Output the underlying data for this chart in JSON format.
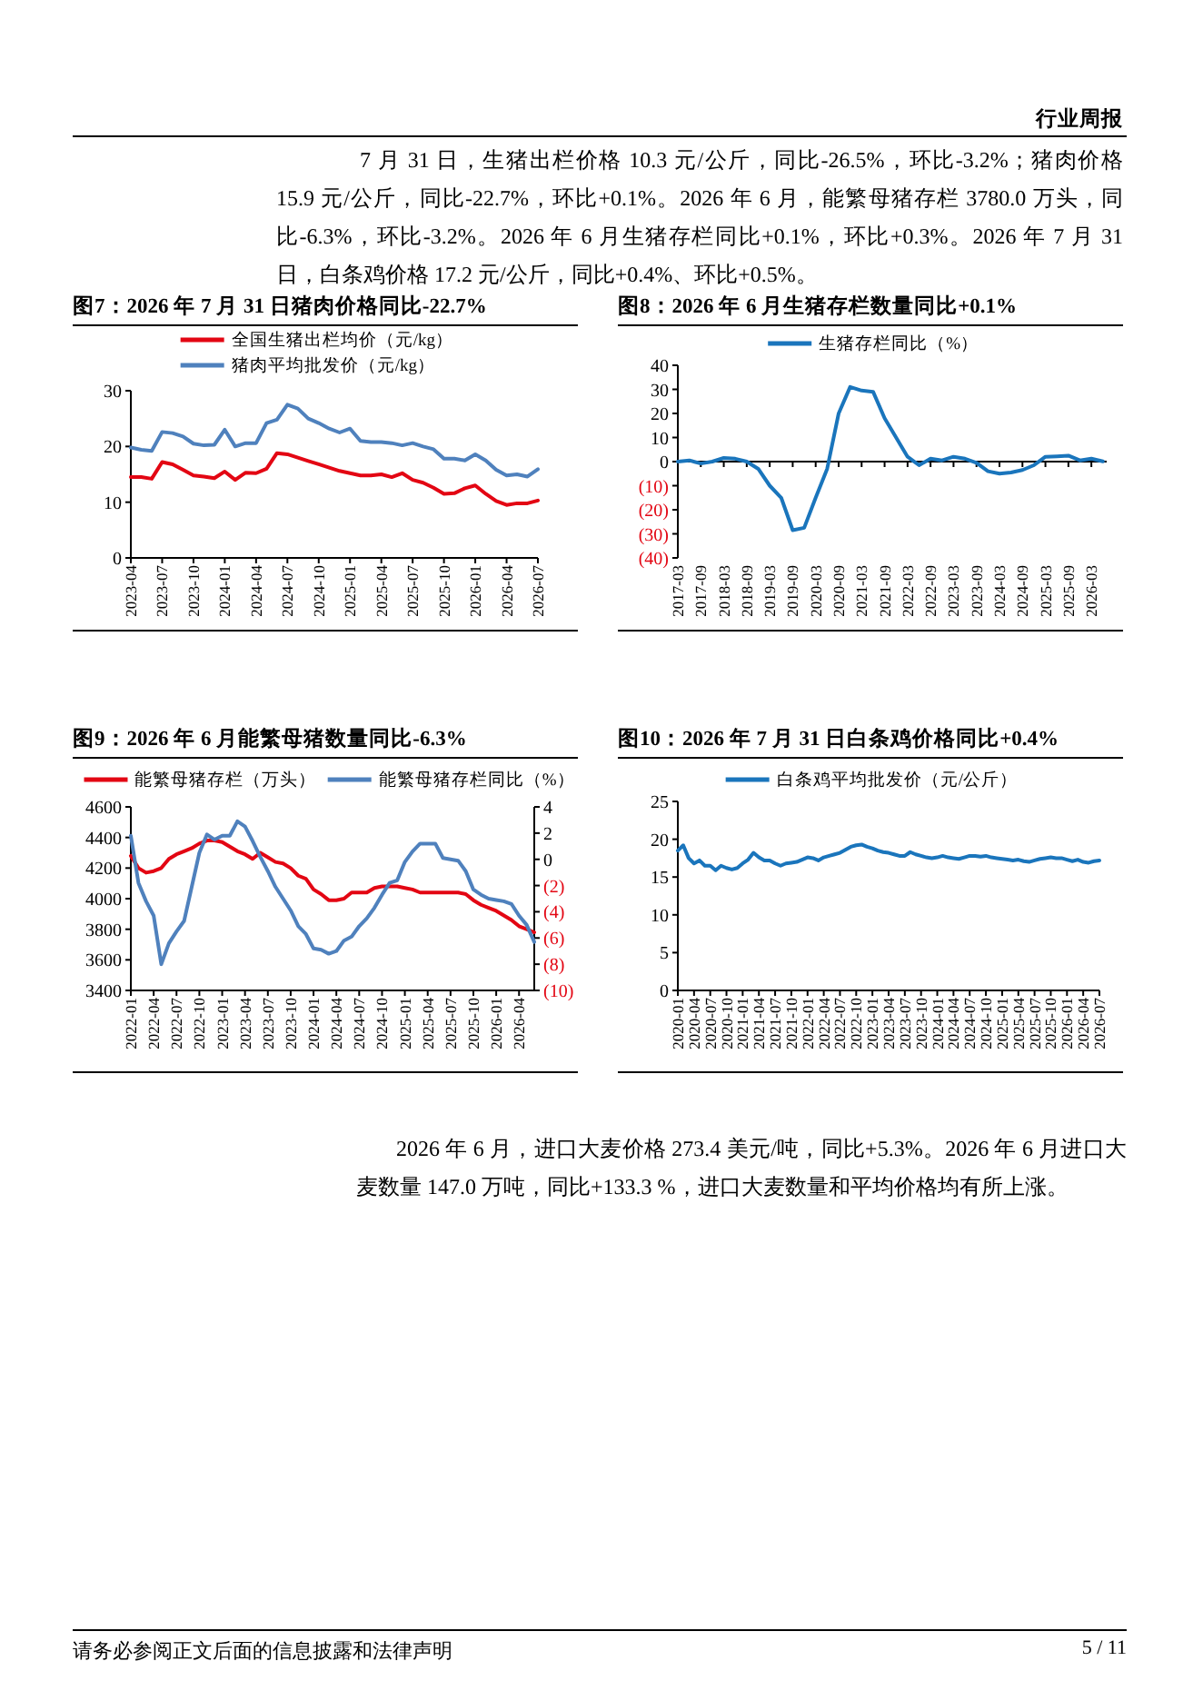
{
  "chart_data": [
    {
      "type": "other",
      "annotations": [
        "行业周报",
        "7 月 31 日，生猪出栏价格 10.3 元/公斤，同比-26.5%，环比-3.2%；猪肉价格 15.9 元/公斤，同比-22.7%，环比+0.1%。2026 年 6 月，能繁母猪存栏 3780.0 万头，同比-6.3%，环比-3.2%。2026 年 6 月生猪存栏同比+0.1%，环比+0.3%。2026 年 7 月 31 日，白条鸡价格 17.2 元/公斤，同比+0.4%、环比+0.5%。"
      ]
    },
    {
      "type": "line",
      "title": "图7：2026 年 7 月 31 日猪肉价格同比-22.7%",
      "legend": "top",
      "x": [
        "2023-04",
        "2023-05",
        "2023-06",
        "2023-07",
        "2023-08",
        "2023-09",
        "2023-10",
        "2023-11",
        "2023-12",
        "2024-01",
        "2024-02",
        "2024-03",
        "2024-04",
        "2024-05",
        "2024-06",
        "2024-07",
        "2024-08",
        "2024-09",
        "2024-10",
        "2024-11",
        "2024-12",
        "2025-01",
        "2025-02",
        "2025-03",
        "2025-04",
        "2025-05",
        "2025-06",
        "2025-07",
        "2025-08",
        "2025-09",
        "2025-10",
        "2025-11",
        "2025-12",
        "2026-01",
        "2026-02",
        "2026-03",
        "2026-04",
        "2026-05",
        "2026-06",
        "2026-07"
      ],
      "series": [
        {
          "name": "全国生猪出栏均价（元/kg）",
          "color": "#e30613",
          "values": [
            14.5,
            14.5,
            14.2,
            17.2,
            16.8,
            15.8,
            14.8,
            14.6,
            14.3,
            15.5,
            14.0,
            15.3,
            15.2,
            16.0,
            18.8,
            18.6,
            18.0,
            17.4,
            16.8,
            16.2,
            15.6,
            15.2,
            14.8,
            14.8,
            15.0,
            14.5,
            15.2,
            14.0,
            13.5,
            12.6,
            11.5,
            11.6,
            12.5,
            13.0,
            11.5,
            10.2,
            9.5,
            9.8,
            9.8,
            10.3
          ]
        },
        {
          "name": "猪肉平均批发价（元/kg）",
          "color": "#4f81bd",
          "values": [
            19.8,
            19.4,
            19.2,
            22.6,
            22.4,
            21.8,
            20.5,
            20.2,
            20.3,
            23.0,
            20.0,
            20.6,
            20.6,
            24.2,
            24.8,
            27.5,
            26.8,
            25.0,
            24.2,
            23.2,
            22.5,
            23.2,
            21.0,
            20.8,
            20.8,
            20.6,
            20.2,
            20.6,
            20.0,
            19.5,
            17.8,
            17.8,
            17.5,
            18.6,
            17.5,
            15.8,
            14.8,
            15.0,
            14.6,
            15.9
          ]
        }
      ],
      "xlim": [
        "2023-04",
        "2026-07"
      ],
      "xticks": [
        "2023-04",
        "2023-07",
        "2023-10",
        "2024-01",
        "2024-04",
        "2024-07",
        "2024-10",
        "2025-01",
        "2025-04",
        "2025-07",
        "2025-10",
        "2026-01",
        "2026-04",
        "2026-07"
      ],
      "ylim": [
        0,
        30
      ],
      "yticks": [
        0,
        10,
        20,
        30
      ]
    },
    {
      "type": "line",
      "title": "图8：2026 年 6 月生猪存栏数量同比+0.1%",
      "legend": "top",
      "x": [
        "2017-03",
        "2017-06",
        "2017-09",
        "2017-12",
        "2018-03",
        "2018-06",
        "2018-09",
        "2018-12",
        "2019-03",
        "2019-06",
        "2019-09",
        "2019-12",
        "2020-03",
        "2020-06",
        "2020-09",
        "2020-12",
        "2021-03",
        "2021-06",
        "2021-09",
        "2021-12",
        "2022-03",
        "2022-06",
        "2022-09",
        "2022-12",
        "2023-03",
        "2023-06",
        "2023-09",
        "2023-12",
        "2024-03",
        "2024-06",
        "2024-09",
        "2024-12",
        "2025-03",
        "2025-06",
        "2025-09",
        "2025-12",
        "2026-03",
        "2026-06"
      ],
      "series": [
        {
          "name": "生猪存栏同比（%）",
          "color": "#1a75bc",
          "values": [
            0,
            0.5,
            -0.8,
            0,
            1.5,
            1.2,
            0,
            -3,
            -10,
            -15,
            -28.5,
            -27.5,
            -15,
            -3,
            20,
            31,
            29.5,
            29,
            18,
            10,
            2,
            -1.5,
            1.2,
            0.5,
            2,
            1.2,
            -0.5,
            -4,
            -5,
            -4.5,
            -3.5,
            -1.5,
            2,
            2.2,
            2.5,
            0.5,
            1.2,
            0.1
          ]
        }
      ],
      "xlim": [
        "2017-03",
        "2026-07"
      ],
      "xticks": [
        "2017-03",
        "2017-09",
        "2018-03",
        "2018-09",
        "2019-03",
        "2019-09",
        "2020-03",
        "2020-09",
        "2021-03",
        "2021-09",
        "2022-03",
        "2022-09",
        "2023-03",
        "2023-09",
        "2024-03",
        "2024-09",
        "2025-03",
        "2025-09",
        "2026-03"
      ],
      "ylim": [
        -40,
        40
      ],
      "yticks": [
        40,
        30,
        20,
        10,
        0,
        {
          "value": -10,
          "label": "(10)"
        },
        {
          "value": -20,
          "label": "(20)"
        },
        {
          "value": -30,
          "label": "(30)"
        },
        {
          "value": -40,
          "label": "(40)"
        }
      ]
    },
    {
      "type": "line",
      "title": "图9：2026 年 6 月能繁母猪数量同比-6.3%",
      "legend": "top",
      "x": [
        "2022-01",
        "2022-02",
        "2022-03",
        "2022-04",
        "2022-05",
        "2022-06",
        "2022-07",
        "2022-08",
        "2022-09",
        "2022-10",
        "2022-11",
        "2022-12",
        "2023-01",
        "2023-02",
        "2023-03",
        "2023-04",
        "2023-05",
        "2023-06",
        "2023-07",
        "2023-08",
        "2023-09",
        "2023-10",
        "2023-11",
        "2023-12",
        "2024-01",
        "2024-02",
        "2024-03",
        "2024-04",
        "2024-05",
        "2024-06",
        "2024-07",
        "2024-08",
        "2024-09",
        "2024-10",
        "2024-11",
        "2024-12",
        "2025-01",
        "2025-02",
        "2025-03",
        "2025-04",
        "2025-05",
        "2025-06",
        "2025-07",
        "2025-08",
        "2025-09",
        "2025-10",
        "2025-11",
        "2025-12",
        "2026-01",
        "2026-02",
        "2026-03",
        "2026-04",
        "2026-05",
        "2026-06"
      ],
      "series": [
        {
          "name": "能繁母猪存栏（万头）",
          "color": "#e30613",
          "values": [
            4280,
            4200,
            4170,
            4180,
            4200,
            4260,
            4290,
            4310,
            4330,
            4360,
            4380,
            4380,
            4370,
            4340,
            4310,
            4290,
            4260,
            4300,
            4270,
            4240,
            4230,
            4200,
            4150,
            4130,
            4060,
            4030,
            3990,
            3990,
            4000,
            4040,
            4040,
            4040,
            4070,
            4080,
            4080,
            4080,
            4070,
            4060,
            4040,
            4040,
            4040,
            4040,
            4040,
            4040,
            4030,
            3990,
            3960,
            3940,
            3920,
            3890,
            3860,
            3820,
            3800,
            3780
          ]
        },
        {
          "name": "能繁母猪存栏同比（%）",
          "color": "#4f81bd",
          "axis": "y2",
          "values": [
            1.8,
            -1.8,
            -3.2,
            -4.3,
            -8.0,
            -6.4,
            -5.5,
            -4.7,
            -2.1,
            0.5,
            1.9,
            1.5,
            1.8,
            1.8,
            2.9,
            2.5,
            1.4,
            0.2,
            -0.9,
            -2.1,
            -3.0,
            -3.9,
            -5.1,
            -5.7,
            -6.8,
            -6.9,
            -7.2,
            -7.0,
            -6.2,
            -5.9,
            -5.1,
            -4.5,
            -3.7,
            -2.7,
            -1.8,
            -1.6,
            -0.2,
            0.6,
            1.2,
            1.2,
            1.2,
            0.1,
            0.0,
            -0.1,
            -0.9,
            -2.3,
            -2.7,
            -3.0,
            -3.1,
            -3.2,
            -3.4,
            -4.3,
            -5.0,
            -6.3
          ]
        }
      ],
      "xlim": [
        "2022-01",
        "2026-06"
      ],
      "xticks": [
        "2022-01",
        "2022-04",
        "2022-07",
        "2022-10",
        "2023-01",
        "2023-04",
        "2023-07",
        "2023-10",
        "2024-01",
        "2024-04",
        "2024-07",
        "2024-10",
        "2025-01",
        "2025-04",
        "2025-07",
        "2025-10",
        "2026-01",
        "2026-04"
      ],
      "ylim": [
        3400,
        4600
      ],
      "yticks": [
        3400,
        3600,
        3800,
        4000,
        4200,
        4400,
        4600
      ],
      "y2lim": [
        -10,
        4
      ],
      "y2ticks": [
        {
          "value": -10,
          "label": "(10)"
        },
        {
          "value": -8,
          "label": "(8)"
        },
        {
          "value": -6,
          "label": "(6)"
        },
        {
          "value": -4,
          "label": "(4)"
        },
        {
          "value": -2,
          "label": "(2)"
        },
        0,
        2,
        4
      ]
    },
    {
      "type": "line",
      "title": "图10：2026 年 7 月 31 日白条鸡价格同比+0.4%",
      "legend": "top",
      "x": [
        "2020-01",
        "2020-02",
        "2020-03",
        "2020-04",
        "2020-05",
        "2020-06",
        "2020-07",
        "2020-08",
        "2020-09",
        "2020-10",
        "2020-11",
        "2020-12",
        "2021-01",
        "2021-02",
        "2021-03",
        "2021-04",
        "2021-05",
        "2021-06",
        "2021-07",
        "2021-08",
        "2021-09",
        "2021-10",
        "2021-11",
        "2021-12",
        "2022-01",
        "2022-02",
        "2022-03",
        "2022-04",
        "2022-05",
        "2022-06",
        "2022-07",
        "2022-08",
        "2022-09",
        "2022-10",
        "2022-11",
        "2022-12",
        "2023-01",
        "2023-02",
        "2023-03",
        "2023-04",
        "2023-05",
        "2023-06",
        "2023-07",
        "2023-08",
        "2023-09",
        "2023-10",
        "2023-11",
        "2023-12",
        "2024-01",
        "2024-02",
        "2024-03",
        "2024-04",
        "2024-05",
        "2024-06",
        "2024-07",
        "2024-08",
        "2024-09",
        "2024-10",
        "2024-11",
        "2024-12",
        "2025-01",
        "2025-02",
        "2025-03",
        "2025-04",
        "2025-05",
        "2025-06",
        "2025-07",
        "2025-08",
        "2025-09",
        "2025-10",
        "2025-11",
        "2025-12",
        "2026-01",
        "2026-02",
        "2026-03",
        "2026-04",
        "2026-05",
        "2026-06",
        "2026-07"
      ],
      "series": [
        {
          "name": "白条鸡平均批发价（元/公斤）",
          "color": "#1a75bc",
          "values": [
            18.5,
            19.2,
            17.5,
            16.8,
            17.2,
            16.5,
            16.5,
            15.9,
            16.5,
            16.2,
            16.0,
            16.2,
            16.8,
            17.3,
            18.2,
            17.6,
            17.2,
            17.2,
            16.8,
            16.5,
            16.8,
            16.9,
            17.0,
            17.3,
            17.6,
            17.5,
            17.2,
            17.6,
            17.8,
            18.0,
            18.2,
            18.6,
            19.0,
            19.2,
            19.3,
            19.0,
            18.8,
            18.5,
            18.3,
            18.2,
            18.0,
            17.8,
            17.8,
            18.3,
            18.0,
            17.8,
            17.6,
            17.5,
            17.6,
            17.8,
            17.6,
            17.5,
            17.4,
            17.6,
            17.8,
            17.8,
            17.7,
            17.8,
            17.6,
            17.5,
            17.4,
            17.3,
            17.2,
            17.3,
            17.1,
            17.0,
            17.2,
            17.4,
            17.5,
            17.6,
            17.5,
            17.5,
            17.3,
            17.1,
            17.3,
            17.0,
            16.9,
            17.1,
            17.2
          ]
        }
      ],
      "xlim": [
        "2020-01",
        "2026-07"
      ],
      "xticks": [
        "2020-01",
        "2020-04",
        "2020-07",
        "2020-10",
        "2021-01",
        "2021-04",
        "2021-07",
        "2021-10",
        "2022-01",
        "2022-04",
        "2022-07",
        "2022-10",
        "2023-01",
        "2023-04",
        "2023-07",
        "2023-10",
        "2024-01",
        "2024-04",
        "2024-07",
        "2024-10",
        "2025-01",
        "2025-04",
        "2025-07",
        "2025-10",
        "2026-01",
        "2026-04",
        "2026-07"
      ],
      "ylim": [
        0,
        25
      ],
      "yticks": [
        0,
        5,
        10,
        15,
        20,
        25
      ]
    },
    {
      "type": "other",
      "annotations": [
        "2026 年 6 月，进口大麦价格 273.4 美元/吨，同比+5.3%。2026 年 6 月进口大麦数量 147.0 万吨，同比+133.3 %，进口大麦数量和平均价格均有所上涨。",
        "请务必参阅正文后面的信息披露和法律声明",
        "5 / 11"
      ]
    }
  ]
}
